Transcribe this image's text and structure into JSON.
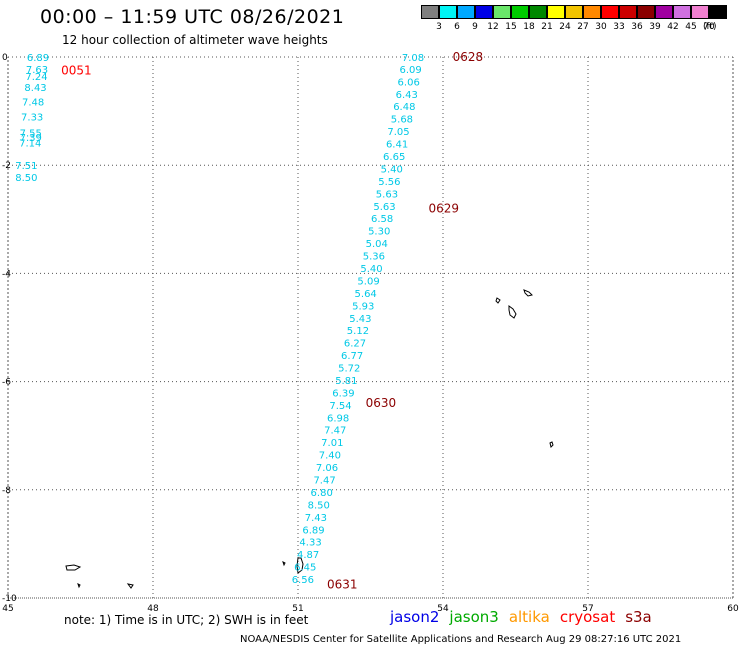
{
  "header": {
    "title": "00:00 – 11:59 UTC 08/26/2021",
    "subtitle": "12 hour collection of altimeter wave heights"
  },
  "legend": {
    "unit": "(ft)",
    "items": [
      {
        "label": "3",
        "color": "#7f7f7f"
      },
      {
        "label": "6",
        "color": "#00f5f5"
      },
      {
        "label": "9",
        "color": "#00a9ff"
      },
      {
        "label": "12",
        "color": "#0000e6"
      },
      {
        "label": "15",
        "color": "#6ae66a"
      },
      {
        "label": "18",
        "color": "#00cc00"
      },
      {
        "label": "21",
        "color": "#008800"
      },
      {
        "label": "24",
        "color": "#ffff00"
      },
      {
        "label": "27",
        "color": "#f2c400"
      },
      {
        "label": "30",
        "color": "#ff8800"
      },
      {
        "label": "33",
        "color": "#ff0000"
      },
      {
        "label": "36",
        "color": "#cc0000"
      },
      {
        "label": "39",
        "color": "#8b0000"
      },
      {
        "label": "42",
        "color": "#a000a0"
      },
      {
        "label": "45",
        "color": "#d070e0"
      },
      {
        "label": "70",
        "color": "#f080d0"
      },
      {
        "label": "",
        "color": "#000000"
      }
    ]
  },
  "axes": {
    "lon_ticks": [
      45,
      48,
      51,
      54,
      57,
      60
    ],
    "lat_ticks": [
      0,
      -2,
      -4,
      -6,
      -8,
      -10
    ],
    "lon_range": [
      45,
      60
    ],
    "lat_range": [
      -10,
      0
    ]
  },
  "passes": [
    {
      "time": "0051",
      "color": "#ff0000",
      "label_at": {
        "lon": 46.1,
        "lat": -0.25
      },
      "obs": [
        {
          "lon": 45.62,
          "lat": 0.0,
          "v": "6.89"
        },
        {
          "lon": 45.6,
          "lat": -0.22,
          "v": "7.63"
        },
        {
          "lon": 45.59,
          "lat": -0.35,
          "v": "7.24"
        },
        {
          "lon": 45.57,
          "lat": -0.55,
          "v": "8.43"
        },
        {
          "lon": 45.52,
          "lat": -0.82,
          "v": "7.48"
        },
        {
          "lon": 45.5,
          "lat": -1.1,
          "v": "7.33"
        },
        {
          "lon": 45.47,
          "lat": -1.4,
          "v": "7.55"
        },
        {
          "lon": 45.47,
          "lat": -1.48,
          "v": "7.39"
        },
        {
          "lon": 45.46,
          "lat": -1.58,
          "v": "7.14"
        },
        {
          "lon": 45.38,
          "lat": -2.0,
          "v": "7.51"
        },
        {
          "lon": 45.38,
          "lat": -2.22,
          "v": "8.50"
        }
      ]
    },
    {
      "time": "0628",
      "color": "#8b0000",
      "label_at": {
        "lon": 54.2,
        "lat": 0.0
      },
      "obs": [
        {
          "lon": 53.38,
          "lat": 0.0,
          "v": "7.08"
        },
        {
          "lon": 53.33,
          "lat": -0.22,
          "v": "6.09"
        },
        {
          "lon": 53.29,
          "lat": -0.45,
          "v": "6.06"
        },
        {
          "lon": 53.25,
          "lat": -0.68,
          "v": "6.43"
        },
        {
          "lon": 53.2,
          "lat": -0.91,
          "v": "6.48"
        },
        {
          "lon": 53.15,
          "lat": -1.14,
          "v": "5.68"
        },
        {
          "lon": 53.08,
          "lat": -1.37,
          "v": "7.05"
        },
        {
          "lon": 53.05,
          "lat": -1.6,
          "v": "6.41"
        },
        {
          "lon": 52.99,
          "lat": -1.83,
          "v": "6.65"
        },
        {
          "lon": 52.94,
          "lat": -2.06,
          "v": "5.40"
        },
        {
          "lon": 52.89,
          "lat": -2.29,
          "v": "5.56"
        },
        {
          "lon": 52.84,
          "lat": -2.52,
          "v": "5.63"
        }
      ]
    },
    {
      "time": "0629",
      "color": "#8b0000",
      "label_at": {
        "lon": 53.7,
        "lat": -2.8
      },
      "obs": [
        {
          "lon": 52.79,
          "lat": -2.75,
          "v": "5.63"
        },
        {
          "lon": 52.74,
          "lat": -2.98,
          "v": "6.58"
        },
        {
          "lon": 52.68,
          "lat": -3.21,
          "v": "5.30"
        },
        {
          "lon": 52.63,
          "lat": -3.44,
          "v": "5.04"
        },
        {
          "lon": 52.57,
          "lat": -3.67,
          "v": "5.36"
        },
        {
          "lon": 52.52,
          "lat": -3.9,
          "v": "5.40"
        },
        {
          "lon": 52.46,
          "lat": -4.13,
          "v": "5.09"
        },
        {
          "lon": 52.4,
          "lat": -4.36,
          "v": "5.64"
        },
        {
          "lon": 52.35,
          "lat": -4.59,
          "v": "5.93"
        },
        {
          "lon": 52.29,
          "lat": -4.82,
          "v": "5.43"
        },
        {
          "lon": 52.24,
          "lat": -5.05,
          "v": "5.12"
        },
        {
          "lon": 52.18,
          "lat": -5.28,
          "v": "6.27"
        },
        {
          "lon": 52.12,
          "lat": -5.51,
          "v": "6.77"
        },
        {
          "lon": 52.06,
          "lat": -5.74,
          "v": "5.72"
        },
        {
          "lon": 52.0,
          "lat": -5.97,
          "v": "5.81"
        }
      ]
    },
    {
      "time": "0630",
      "color": "#8b0000",
      "label_at": {
        "lon": 52.4,
        "lat": -6.4
      },
      "obs": [
        {
          "lon": 51.94,
          "lat": -6.2,
          "v": "6.39"
        },
        {
          "lon": 51.88,
          "lat": -6.43,
          "v": "7.54"
        },
        {
          "lon": 51.83,
          "lat": -6.66,
          "v": "6.98"
        },
        {
          "lon": 51.77,
          "lat": -6.89,
          "v": "7.47"
        },
        {
          "lon": 51.71,
          "lat": -7.12,
          "v": "7.01"
        },
        {
          "lon": 51.66,
          "lat": -7.35,
          "v": "7.40"
        },
        {
          "lon": 51.6,
          "lat": -7.58,
          "v": "7.06"
        },
        {
          "lon": 51.55,
          "lat": -7.81,
          "v": "7.47"
        },
        {
          "lon": 51.49,
          "lat": -8.04,
          "v": "6.80"
        },
        {
          "lon": 51.43,
          "lat": -8.27,
          "v": "8.50"
        },
        {
          "lon": 51.37,
          "lat": -8.5,
          "v": "7.43"
        },
        {
          "lon": 51.32,
          "lat": -8.73,
          "v": "6.89"
        },
        {
          "lon": 51.26,
          "lat": -8.96,
          "v": "4.33"
        },
        {
          "lon": 51.21,
          "lat": -9.19,
          "v": "4.87"
        },
        {
          "lon": 51.15,
          "lat": -9.42,
          "v": "6.45"
        }
      ]
    },
    {
      "time": "0631",
      "color": "#8b0000",
      "label_at": {
        "lon": 51.6,
        "lat": -9.75
      },
      "obs": [
        {
          "lon": 51.1,
          "lat": -9.65,
          "v": "6.56"
        }
      ]
    }
  ],
  "footer": {
    "note": "note: 1) Time is in UTC; 2) SWH is in feet",
    "credit": "NOAA/NESDIS Center for Satellite Applications and Research   Aug 29 08:27:16 UTC 2021",
    "missions": [
      {
        "name": "jason2",
        "color": "#0000e6"
      },
      {
        "name": "jason3",
        "color": "#00aa00"
      },
      {
        "name": "altika",
        "color": "#ff9900"
      },
      {
        "name": "cryosat",
        "color": "#ff0000"
      },
      {
        "name": "s3a",
        "color": "#8b0000"
      }
    ]
  },
  "style": {
    "obs_color": "#00c8e6",
    "grid_color": "#555555"
  }
}
